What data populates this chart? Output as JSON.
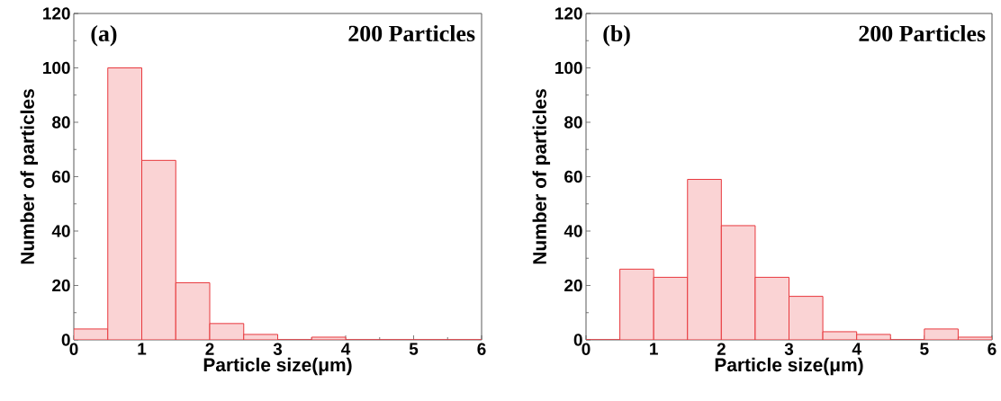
{
  "chart_data": [
    {
      "type": "histogram",
      "bins": [
        0,
        0.5,
        1,
        1.5,
        2,
        2.5,
        3,
        3.5,
        4,
        4.5,
        5,
        5.5,
        6
      ],
      "values": [
        4,
        100,
        66,
        21,
        6,
        2,
        0,
        1,
        0,
        0,
        0,
        0
      ],
      "color": "#e8383d",
      "xlim": [
        0,
        6
      ],
      "ylim": [
        0,
        120
      ],
      "xticks": [
        0,
        1,
        2,
        3,
        4,
        5,
        6
      ],
      "yticks": [
        0,
        20,
        40,
        60,
        80,
        100,
        120
      ],
      "xlabel": "Particle size(μm)",
      "ylabel": "Number of particles",
      "annotations": [
        "(a)",
        "200 Particles"
      ]
    },
    {
      "type": "histogram",
      "bins": [
        0,
        0.5,
        1,
        1.5,
        2,
        2.5,
        3,
        3.5,
        4,
        4.5,
        5,
        5.5,
        6
      ],
      "values": [
        0,
        26,
        23,
        59,
        42,
        23,
        16,
        3,
        2,
        0,
        4,
        1
      ],
      "color": "#e8383d",
      "xlim": [
        0,
        6
      ],
      "ylim": [
        0,
        120
      ],
      "xticks": [
        0,
        1,
        2,
        3,
        4,
        5,
        6
      ],
      "yticks": [
        0,
        20,
        40,
        60,
        80,
        100,
        120
      ],
      "xlabel": "Particle size(μm)",
      "ylabel": "Number of particles",
      "annotations": [
        "(b)",
        "200 Particles"
      ]
    }
  ]
}
